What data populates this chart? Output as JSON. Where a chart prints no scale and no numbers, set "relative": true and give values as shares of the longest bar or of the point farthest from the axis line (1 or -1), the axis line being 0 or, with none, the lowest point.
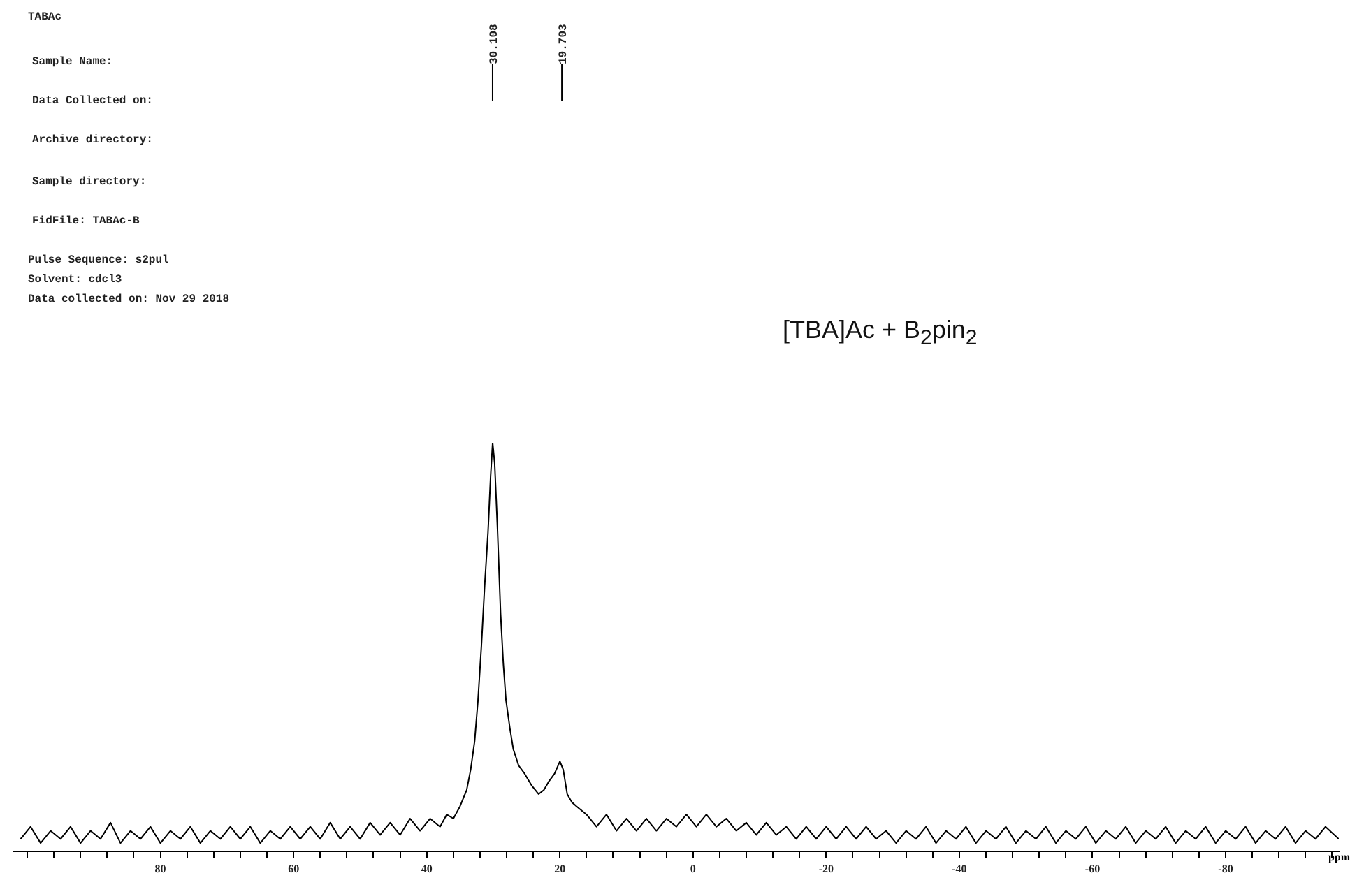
{
  "chart_data": {
    "type": "line",
    "relative": true,
    "title": "[TBA]Ac + B$_{2}$pin$_{2}$",
    "xlabel": "ppm",
    "annotations": [
      "TABAc",
      "Sample Name:",
      "Data Collected on:",
      "Archive directory:",
      "Sample directory:",
      "FidFile: TABAc-B",
      "Pulse Sequence: s2pul",
      "Solvent: cdcl3",
      "Data collected on: Nov 29 2018",
      {
        "text": "30.108",
        "x": 30.108
      },
      {
        "text": "19.703",
        "x": 19.703
      }
    ],
    "xlim": [
      102,
      -97
    ],
    "xticks": [
      {
        "value": 100,
        "label": null
      },
      {
        "value": 96,
        "label": null
      },
      {
        "value": 92,
        "label": null
      },
      {
        "value": 88,
        "label": null
      },
      {
        "value": 84,
        "label": null
      },
      80,
      {
        "value": 76,
        "label": null
      },
      {
        "value": 72,
        "label": null
      },
      {
        "value": 68,
        "label": null
      },
      {
        "value": 64,
        "label": null
      },
      60,
      {
        "value": 56,
        "label": null
      },
      {
        "value": 52,
        "label": null
      },
      {
        "value": 48,
        "label": null
      },
      {
        "value": 44,
        "label": null
      },
      40,
      {
        "value": 36,
        "label": null
      },
      {
        "value": 32,
        "label": null
      },
      {
        "value": 28,
        "label": null
      },
      {
        "value": 24,
        "label": null
      },
      20,
      {
        "value": 16,
        "label": null
      },
      {
        "value": 12,
        "label": null
      },
      {
        "value": 8,
        "label": null
      },
      {
        "value": 4,
        "label": null
      },
      0,
      {
        "value": -4,
        "label": null
      },
      {
        "value": -8,
        "label": null
      },
      {
        "value": -12,
        "label": null
      },
      {
        "value": -16,
        "label": null
      },
      -20,
      {
        "value": -24,
        "label": null
      },
      {
        "value": -28,
        "label": null
      },
      {
        "value": -32,
        "label": null
      },
      {
        "value": -36,
        "label": null
      },
      -40,
      {
        "value": -44,
        "label": null
      },
      {
        "value": -48,
        "label": null
      },
      {
        "value": -52,
        "label": null
      },
      {
        "value": -56,
        "label": null
      },
      -60,
      {
        "value": -64,
        "label": null
      },
      {
        "value": -68,
        "label": null
      },
      {
        "value": -72,
        "label": null
      },
      {
        "value": -76,
        "label": null
      },
      -80,
      {
        "value": -84,
        "label": null
      },
      {
        "value": -88,
        "label": null
      },
      {
        "value": -92,
        "label": null
      },
      {
        "value": -96,
        "label": null
      }
    ],
    "grid": false,
    "legend": false,
    "marker": "none",
    "line_style": "solid",
    "color": "#000000",
    "x": [
      101,
      99.5,
      98,
      96.5,
      95,
      93.5,
      92,
      90.5,
      89,
      87.5,
      86,
      84.5,
      83,
      81.5,
      80,
      78.5,
      77,
      75.5,
      74,
      72.5,
      71,
      69.5,
      68,
      66.5,
      65,
      63.5,
      62,
      60.5,
      59,
      57.5,
      56,
      54.5,
      53,
      51.5,
      50,
      48.5,
      47,
      45.5,
      44,
      42.5,
      41,
      39.5,
      38,
      37,
      36,
      35,
      34,
      33.4,
      32.8,
      32.3,
      31.8,
      31.3,
      30.8,
      30.4,
      30.1,
      29.8,
      29.4,
      28.9,
      28.5,
      28.1,
      27.5,
      27,
      26.2,
      25.3,
      24.2,
      23.2,
      22.4,
      21.7,
      20.8,
      20,
      19.5,
      18.9,
      18.2,
      17.5,
      16,
      14.5,
      13,
      11.5,
      10,
      8.5,
      7,
      5.5,
      4,
      2.5,
      1,
      -0.5,
      -2,
      -3.5,
      -5,
      -6.5,
      -8,
      -9.5,
      -11,
      -12.5,
      -14,
      -15.5,
      -17,
      -18.5,
      -20,
      -21.5,
      -23,
      -24.5,
      -26,
      -27.5,
      -29,
      -30.5,
      -32,
      -33.5,
      -35,
      -36.5,
      -38,
      -39.5,
      -41,
      -42.5,
      -44,
      -45.5,
      -47,
      -48.5,
      -50,
      -51.5,
      -53,
      -54.5,
      -56,
      -57.5,
      -59,
      -60.5,
      -62,
      -63.5,
      -65,
      -66.5,
      -68,
      -69.5,
      -71,
      -72.5,
      -74,
      -75.5,
      -77,
      -78.5,
      -80,
      -81.5,
      -83,
      -84.5,
      -86,
      -87.5,
      -89,
      -90.5,
      -92,
      -93.5,
      -95,
      -97
    ],
    "values": [
      0.03,
      0.06,
      0.02,
      0.05,
      0.03,
      0.06,
      0.02,
      0.05,
      0.03,
      0.07,
      0.02,
      0.05,
      0.03,
      0.06,
      0.02,
      0.05,
      0.03,
      0.06,
      0.02,
      0.05,
      0.03,
      0.06,
      0.03,
      0.06,
      0.02,
      0.05,
      0.03,
      0.06,
      0.03,
      0.06,
      0.03,
      0.07,
      0.03,
      0.06,
      0.03,
      0.07,
      0.04,
      0.07,
      0.04,
      0.08,
      0.05,
      0.08,
      0.06,
      0.09,
      0.08,
      0.11,
      0.15,
      0.2,
      0.27,
      0.37,
      0.5,
      0.65,
      0.78,
      0.92,
      1.0,
      0.95,
      0.8,
      0.58,
      0.46,
      0.37,
      0.3,
      0.25,
      0.21,
      0.19,
      0.16,
      0.14,
      0.15,
      0.17,
      0.19,
      0.22,
      0.2,
      0.14,
      0.12,
      0.11,
      0.09,
      0.06,
      0.09,
      0.05,
      0.08,
      0.05,
      0.08,
      0.05,
      0.08,
      0.06,
      0.09,
      0.06,
      0.09,
      0.06,
      0.08,
      0.05,
      0.07,
      0.04,
      0.07,
      0.04,
      0.06,
      0.03,
      0.06,
      0.03,
      0.06,
      0.03,
      0.06,
      0.03,
      0.06,
      0.03,
      0.05,
      0.02,
      0.05,
      0.03,
      0.06,
      0.02,
      0.05,
      0.03,
      0.06,
      0.02,
      0.05,
      0.03,
      0.06,
      0.02,
      0.05,
      0.03,
      0.06,
      0.02,
      0.05,
      0.03,
      0.06,
      0.02,
      0.05,
      0.03,
      0.06,
      0.02,
      0.05,
      0.03,
      0.06,
      0.02,
      0.05,
      0.03,
      0.06,
      0.02,
      0.05,
      0.03,
      0.06,
      0.02,
      0.05,
      0.03,
      0.06,
      0.02,
      0.05,
      0.03,
      0.06,
      0.03
    ]
  }
}
